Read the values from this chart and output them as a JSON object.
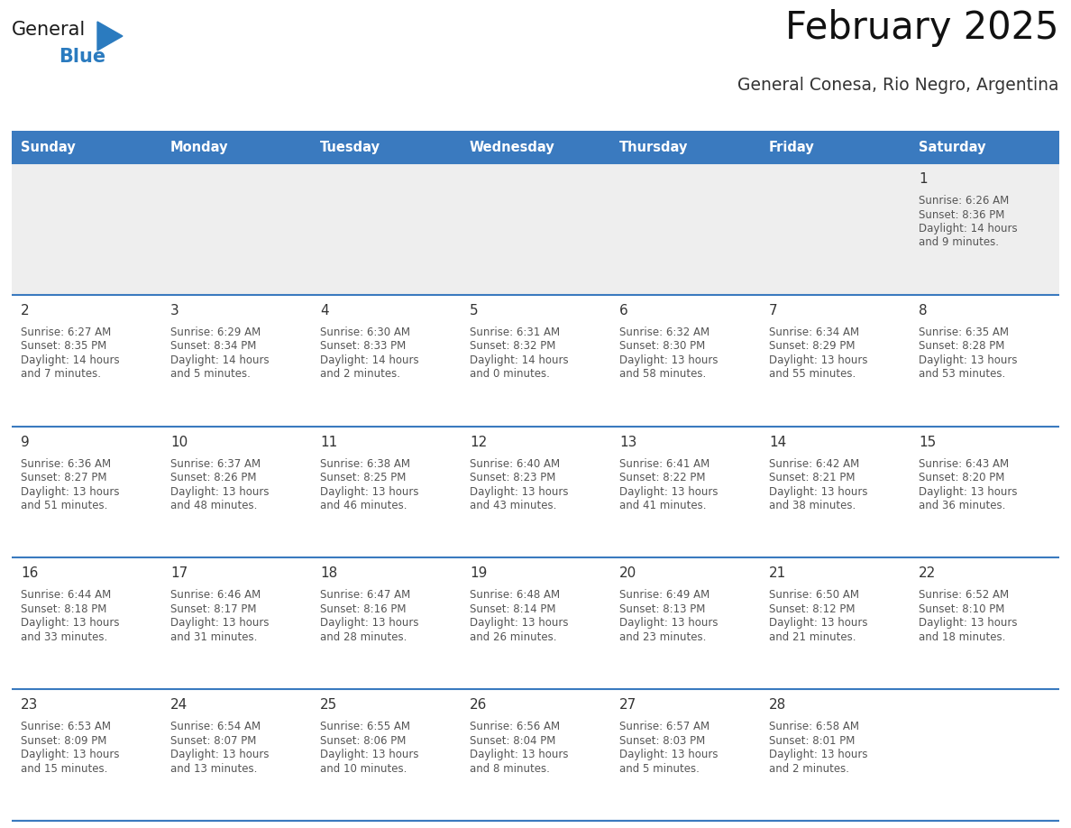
{
  "title": "February 2025",
  "subtitle": "General Conesa, Rio Negro, Argentina",
  "days_of_week": [
    "Sunday",
    "Monday",
    "Tuesday",
    "Wednesday",
    "Thursday",
    "Friday",
    "Saturday"
  ],
  "header_bg": "#3a7abf",
  "header_text": "#ffffff",
  "row1_bg": "#eeeeee",
  "row_bg": "#ffffff",
  "day_num_color": "#333333",
  "text_color": "#555555",
  "line_color": "#3a7abf",
  "logo_general_color": "#1a1a1a",
  "logo_blue_color": "#2b7bbf",
  "calendar": [
    [
      null,
      null,
      null,
      null,
      null,
      null,
      1
    ],
    [
      2,
      3,
      4,
      5,
      6,
      7,
      8
    ],
    [
      9,
      10,
      11,
      12,
      13,
      14,
      15
    ],
    [
      16,
      17,
      18,
      19,
      20,
      21,
      22
    ],
    [
      23,
      24,
      25,
      26,
      27,
      28,
      null
    ]
  ],
  "cell_data": {
    "1": {
      "sunrise": "6:26 AM",
      "sunset": "8:36 PM",
      "daylight_h": "14 hours",
      "daylight_m": "and 9 minutes."
    },
    "2": {
      "sunrise": "6:27 AM",
      "sunset": "8:35 PM",
      "daylight_h": "14 hours",
      "daylight_m": "and 7 minutes."
    },
    "3": {
      "sunrise": "6:29 AM",
      "sunset": "8:34 PM",
      "daylight_h": "14 hours",
      "daylight_m": "and 5 minutes."
    },
    "4": {
      "sunrise": "6:30 AM",
      "sunset": "8:33 PM",
      "daylight_h": "14 hours",
      "daylight_m": "and 2 minutes."
    },
    "5": {
      "sunrise": "6:31 AM",
      "sunset": "8:32 PM",
      "daylight_h": "14 hours",
      "daylight_m": "and 0 minutes."
    },
    "6": {
      "sunrise": "6:32 AM",
      "sunset": "8:30 PM",
      "daylight_h": "13 hours",
      "daylight_m": "and 58 minutes."
    },
    "7": {
      "sunrise": "6:34 AM",
      "sunset": "8:29 PM",
      "daylight_h": "13 hours",
      "daylight_m": "and 55 minutes."
    },
    "8": {
      "sunrise": "6:35 AM",
      "sunset": "8:28 PM",
      "daylight_h": "13 hours",
      "daylight_m": "and 53 minutes."
    },
    "9": {
      "sunrise": "6:36 AM",
      "sunset": "8:27 PM",
      "daylight_h": "13 hours",
      "daylight_m": "and 51 minutes."
    },
    "10": {
      "sunrise": "6:37 AM",
      "sunset": "8:26 PM",
      "daylight_h": "13 hours",
      "daylight_m": "and 48 minutes."
    },
    "11": {
      "sunrise": "6:38 AM",
      "sunset": "8:25 PM",
      "daylight_h": "13 hours",
      "daylight_m": "and 46 minutes."
    },
    "12": {
      "sunrise": "6:40 AM",
      "sunset": "8:23 PM",
      "daylight_h": "13 hours",
      "daylight_m": "and 43 minutes."
    },
    "13": {
      "sunrise": "6:41 AM",
      "sunset": "8:22 PM",
      "daylight_h": "13 hours",
      "daylight_m": "and 41 minutes."
    },
    "14": {
      "sunrise": "6:42 AM",
      "sunset": "8:21 PM",
      "daylight_h": "13 hours",
      "daylight_m": "and 38 minutes."
    },
    "15": {
      "sunrise": "6:43 AM",
      "sunset": "8:20 PM",
      "daylight_h": "13 hours",
      "daylight_m": "and 36 minutes."
    },
    "16": {
      "sunrise": "6:44 AM",
      "sunset": "8:18 PM",
      "daylight_h": "13 hours",
      "daylight_m": "and 33 minutes."
    },
    "17": {
      "sunrise": "6:46 AM",
      "sunset": "8:17 PM",
      "daylight_h": "13 hours",
      "daylight_m": "and 31 minutes."
    },
    "18": {
      "sunrise": "6:47 AM",
      "sunset": "8:16 PM",
      "daylight_h": "13 hours",
      "daylight_m": "and 28 minutes."
    },
    "19": {
      "sunrise": "6:48 AM",
      "sunset": "8:14 PM",
      "daylight_h": "13 hours",
      "daylight_m": "and 26 minutes."
    },
    "20": {
      "sunrise": "6:49 AM",
      "sunset": "8:13 PM",
      "daylight_h": "13 hours",
      "daylight_m": "and 23 minutes."
    },
    "21": {
      "sunrise": "6:50 AM",
      "sunset": "8:12 PM",
      "daylight_h": "13 hours",
      "daylight_m": "and 21 minutes."
    },
    "22": {
      "sunrise": "6:52 AM",
      "sunset": "8:10 PM",
      "daylight_h": "13 hours",
      "daylight_m": "and 18 minutes."
    },
    "23": {
      "sunrise": "6:53 AM",
      "sunset": "8:09 PM",
      "daylight_h": "13 hours",
      "daylight_m": "and 15 minutes."
    },
    "24": {
      "sunrise": "6:54 AM",
      "sunset": "8:07 PM",
      "daylight_h": "13 hours",
      "daylight_m": "and 13 minutes."
    },
    "25": {
      "sunrise": "6:55 AM",
      "sunset": "8:06 PM",
      "daylight_h": "13 hours",
      "daylight_m": "and 10 minutes."
    },
    "26": {
      "sunrise": "6:56 AM",
      "sunset": "8:04 PM",
      "daylight_h": "13 hours",
      "daylight_m": "and 8 minutes."
    },
    "27": {
      "sunrise": "6:57 AM",
      "sunset": "8:03 PM",
      "daylight_h": "13 hours",
      "daylight_m": "and 5 minutes."
    },
    "28": {
      "sunrise": "6:58 AM",
      "sunset": "8:01 PM",
      "daylight_h": "13 hours",
      "daylight_m": "and 2 minutes."
    }
  }
}
